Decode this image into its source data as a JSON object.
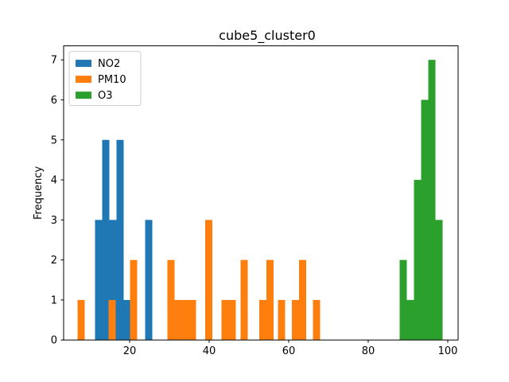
{
  "chart_data": {
    "type": "bar",
    "title": "cube5_cluster0",
    "xlabel": "",
    "ylabel": "Frequency",
    "xlim": [
      3.4,
      102.6
    ],
    "ylim": [
      0,
      7.35
    ],
    "xticks": [
      20,
      40,
      60,
      80,
      100
    ],
    "yticks": [
      0,
      1,
      2,
      3,
      4,
      5,
      6,
      7
    ],
    "grid": false,
    "legend_position": "top-left",
    "bar_width": 1.8,
    "series": [
      {
        "name": "NO2",
        "color": "#1f77b4",
        "bars": [
          {
            "x": 12.2,
            "value": 3
          },
          {
            "x": 14.0,
            "value": 5
          },
          {
            "x": 15.8,
            "value": 3
          },
          {
            "x": 17.6,
            "value": 5
          },
          {
            "x": 19.4,
            "value": 1
          },
          {
            "x": 24.8,
            "value": 3
          }
        ]
      },
      {
        "name": "PM10",
        "color": "#ff7f0e",
        "bars": [
          {
            "x": 7.8,
            "value": 1
          },
          {
            "x": 15.6,
            "value": 1
          },
          {
            "x": 21.0,
            "value": 2
          },
          {
            "x": 30.4,
            "value": 2
          },
          {
            "x": 32.2,
            "value": 1
          },
          {
            "x": 34.0,
            "value": 1
          },
          {
            "x": 35.8,
            "value": 1
          },
          {
            "x": 39.9,
            "value": 3
          },
          {
            "x": 44.0,
            "value": 1
          },
          {
            "x": 45.8,
            "value": 1
          },
          {
            "x": 48.8,
            "value": 2
          },
          {
            "x": 53.5,
            "value": 1
          },
          {
            "x": 55.3,
            "value": 2
          },
          {
            "x": 58.2,
            "value": 1
          },
          {
            "x": 61.7,
            "value": 1
          },
          {
            "x": 63.5,
            "value": 2
          },
          {
            "x": 67.0,
            "value": 1
          }
        ]
      },
      {
        "name": "O3",
        "color": "#2ca02c",
        "bars": [
          {
            "x": 88.8,
            "value": 2
          },
          {
            "x": 90.6,
            "value": 1
          },
          {
            "x": 92.4,
            "value": 4
          },
          {
            "x": 94.2,
            "value": 6
          },
          {
            "x": 96.0,
            "value": 7
          },
          {
            "x": 97.8,
            "value": 3
          }
        ]
      }
    ]
  }
}
